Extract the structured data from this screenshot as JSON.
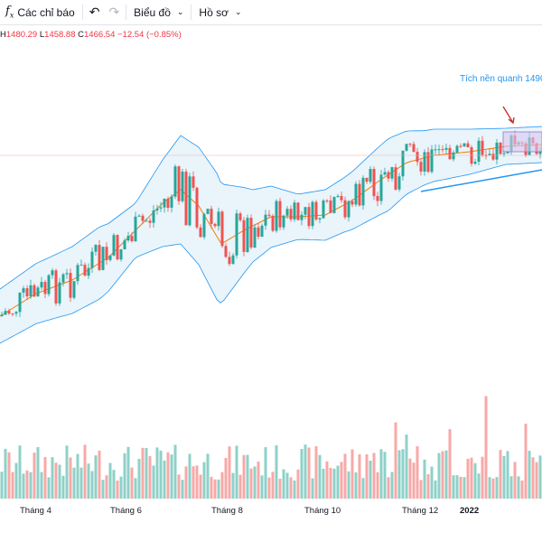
{
  "toolbar": {
    "indicators_label": "Các chỉ báo",
    "chart_type_label": "Biểu đồ",
    "profile_label": "Hồ sơ"
  },
  "legend": {
    "high": "1480.29",
    "low": "1458.88",
    "close": "1466.54",
    "change": "−12.54 (−0.85%)"
  },
  "annotation": "Tích nền quanh 1490",
  "colors": {
    "up": "#26a69a",
    "down": "#ef5350",
    "up_volume": "#8ed1c8",
    "down_volume": "#f7a9a7",
    "band_fill": "#e9f4fb",
    "band_line": "#2196f3",
    "ma": "#f57c00",
    "trendline": "#2196f3",
    "box_fill": "#d7c7f0",
    "arrow": "#c62828"
  },
  "chart_data": {
    "type": "candlestick",
    "indicators": [
      "Bollinger Bands",
      "Volume"
    ],
    "x_tick_labels": [
      "Tháng 4",
      "Tháng 6",
      "Tháng 8",
      "Tháng 10",
      "Tháng 12",
      "2022"
    ]
  }
}
